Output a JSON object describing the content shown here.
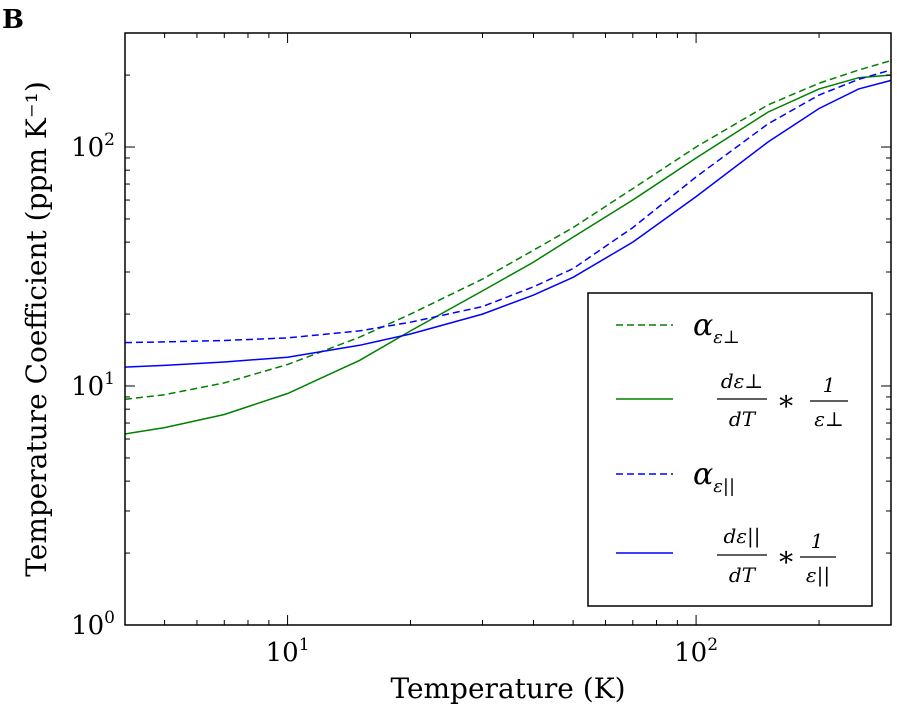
{
  "panel_label": "B",
  "chart_data": {
    "type": "line",
    "title": "",
    "xlabel": "Temperature (K)",
    "ylabel": "Temperature Coefficient (ppm K⁻¹)",
    "xscale": "log",
    "yscale": "log",
    "xlim": [
      4,
      300
    ],
    "ylim": [
      1,
      300
    ],
    "xticks": [
      {
        "base": "10",
        "exp": "1",
        "value": 10
      },
      {
        "base": "10",
        "exp": "2",
        "value": 100
      }
    ],
    "yticks": [
      {
        "base": "10",
        "exp": "0",
        "value": 1
      },
      {
        "base": "10",
        "exp": "1",
        "value": 10
      },
      {
        "base": "10",
        "exp": "2",
        "value": 100
      }
    ],
    "legend_position": "center-right",
    "x": [
      4,
      5,
      7,
      10,
      15,
      20,
      30,
      40,
      50,
      70,
      100,
      150,
      200,
      250,
      300
    ],
    "series": [
      {
        "name": "alpha_eps_perp",
        "legend_symbol": "α",
        "legend_sub": "ε⊥",
        "color": "#008000",
        "style": "dashed",
        "values": [
          8.8,
          9.2,
          10.3,
          12.3,
          16.0,
          20.0,
          28.0,
          37.0,
          46.0,
          67.0,
          100.0,
          150.0,
          185.0,
          210.0,
          230.0
        ]
      },
      {
        "name": "deps_perp_dT_times_inv_eps_perp",
        "legend_num": "dε⊥",
        "legend_den": "dT",
        "legend_op": "∗",
        "legend_frac_num": "1",
        "legend_frac_den": "ε⊥",
        "color": "#008000",
        "style": "solid",
        "values": [
          6.3,
          6.7,
          7.6,
          9.3,
          12.8,
          17.0,
          25.0,
          33.0,
          42.0,
          60.0,
          90.0,
          140.0,
          175.0,
          195.0,
          200.0
        ]
      },
      {
        "name": "alpha_eps_par",
        "legend_symbol": "α",
        "legend_sub": "ε||",
        "color": "#0000ff",
        "style": "dashed",
        "values": [
          15.2,
          15.3,
          15.5,
          15.9,
          17.0,
          18.5,
          21.5,
          26.0,
          31.0,
          46.0,
          75.0,
          125.0,
          165.0,
          192.0,
          210.0
        ]
      },
      {
        "name": "deps_par_dT_times_inv_eps_par",
        "legend_num": "dε||",
        "legend_den": "dT",
        "legend_op": "∗",
        "legend_frac_num": "1",
        "legend_frac_den": "ε||",
        "color": "#0000ff",
        "style": "solid",
        "values": [
          12.0,
          12.2,
          12.6,
          13.2,
          14.8,
          16.5,
          20.0,
          24.0,
          28.5,
          40.0,
          62.0,
          105.0,
          145.0,
          175.0,
          190.0
        ]
      }
    ]
  }
}
